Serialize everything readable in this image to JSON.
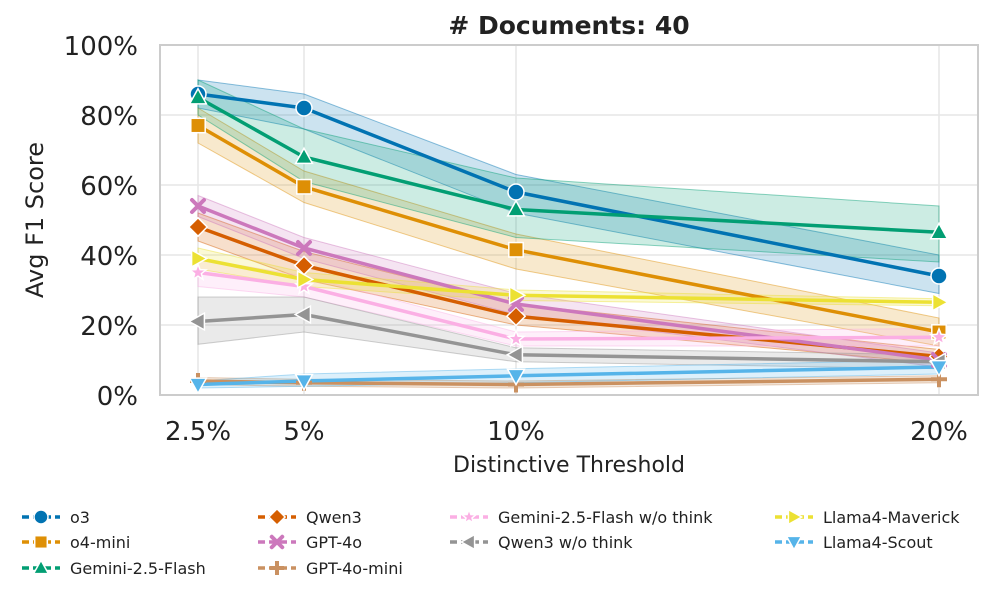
{
  "chart_data": {
    "type": "line",
    "title": "# Documents: 40",
    "xlabel": "Distinctive Threshold",
    "ylabel": "Avg F1 Score",
    "x": [
      2.5,
      5,
      10,
      20
    ],
    "x_tick_labels": [
      "2.5%",
      "5%",
      "10%",
      "20%"
    ],
    "ylim": [
      0,
      100
    ],
    "y_ticks": [
      0,
      20,
      40,
      60,
      80,
      100
    ],
    "y_tick_labels": [
      "0%",
      "20%",
      "40%",
      "60%",
      "80%",
      "100%"
    ],
    "grid": true,
    "legend_position": "bottom",
    "series": [
      {
        "name": "o3",
        "color": "#0173b2",
        "marker": "circle",
        "values": [
          86,
          82,
          58,
          34
        ],
        "lower": [
          82,
          76,
          52,
          29
        ],
        "upper": [
          90,
          86,
          63,
          40
        ]
      },
      {
        "name": "o4-mini",
        "color": "#de8f05",
        "marker": "square",
        "values": [
          77,
          59.5,
          41.5,
          18
        ],
        "lower": [
          72,
          55,
          36,
          14
        ],
        "upper": [
          82,
          64,
          46,
          22
        ]
      },
      {
        "name": "Gemini-2.5-Flash",
        "color": "#029e73",
        "marker": "triangle-up",
        "values": [
          85,
          68,
          53,
          46.5
        ],
        "lower": [
          80,
          61,
          45,
          38
        ],
        "upper": [
          90,
          76,
          62,
          54
        ]
      },
      {
        "name": "Qwen3",
        "color": "#d55e00",
        "marker": "diamond",
        "values": [
          48,
          37,
          22.5,
          11
        ],
        "lower": [
          44,
          33,
          20,
          9
        ],
        "upper": [
          52,
          41,
          26,
          13
        ]
      },
      {
        "name": "GPT-4o",
        "color": "#cc78bc",
        "marker": "x",
        "values": [
          54,
          42,
          26,
          10
        ],
        "lower": [
          51,
          39,
          23,
          8
        ],
        "upper": [
          57,
          45,
          29,
          12
        ]
      },
      {
        "name": "GPT-4o-mini",
        "color": "#ca9161",
        "marker": "plus",
        "values": [
          4,
          3.5,
          3,
          4.5
        ],
        "lower": [
          3,
          2.5,
          2,
          3.5
        ],
        "upper": [
          5,
          4.5,
          4,
          5.5
        ]
      },
      {
        "name": "Gemini-2.5-Flash w/o think",
        "color": "#fbafe4",
        "marker": "star",
        "values": [
          35,
          31,
          16,
          16.5
        ],
        "lower": [
          31,
          28,
          14,
          14
        ],
        "upper": [
          39,
          34,
          18,
          19
        ]
      },
      {
        "name": "Qwen3 w/o think",
        "color": "#949494",
        "marker": "triangle-left",
        "values": [
          21,
          23,
          11.5,
          9.5
        ],
        "lower": [
          14.5,
          18,
          9.5,
          7.5
        ],
        "upper": [
          28,
          28,
          13.5,
          11.5
        ]
      },
      {
        "name": "Llama4-Maverick",
        "color": "#ece133",
        "marker": "triangle-right",
        "values": [
          39,
          33,
          28.5,
          26.5
        ],
        "lower": [
          36,
          31,
          27,
          25.5
        ],
        "upper": [
          42,
          35,
          30,
          27.5
        ]
      },
      {
        "name": "Llama4-Scout",
        "color": "#56b4e9",
        "marker": "triangle-down",
        "values": [
          3,
          4,
          5.5,
          8
        ],
        "lower": [
          2,
          2.5,
          3.5,
          6
        ],
        "upper": [
          4,
          6,
          7.5,
          10
        ]
      }
    ]
  }
}
